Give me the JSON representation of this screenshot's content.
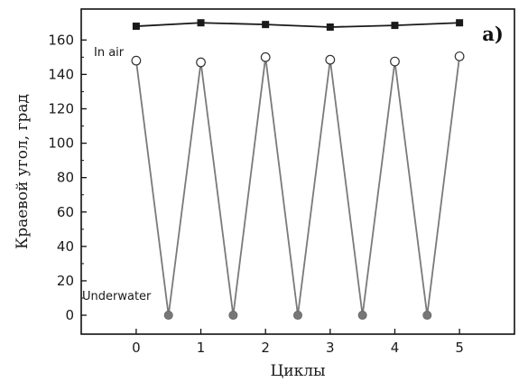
{
  "chart_data": {
    "type": "line",
    "panel_label": "a)",
    "xlabel": "Циклы",
    "ylabel": "Краевой угол, град",
    "xlim": [
      -0.85,
      5.85
    ],
    "ylim": [
      -11,
      178
    ],
    "xticks": [
      0,
      1,
      2,
      3,
      4,
      5
    ],
    "yticks": [
      0,
      20,
      40,
      60,
      80,
      100,
      120,
      140,
      160
    ],
    "grid": false,
    "annotations": [
      {
        "text": "In air",
        "near_series": "in-air"
      },
      {
        "text": "Underwater",
        "near_series": "cycling"
      }
    ],
    "series": [
      {
        "id": "in-air",
        "marker": "filled-square",
        "color": "#1a1a1a",
        "x": [
          0,
          1,
          2,
          3,
          4,
          5
        ],
        "y": [
          168,
          170,
          169,
          167.5,
          168.5,
          170
        ]
      },
      {
        "id": "cycling",
        "marker": "alternating open-circle / filled-circle",
        "color": "#7a7a7a",
        "x": [
          0,
          0.5,
          1,
          1.5,
          2,
          2.5,
          3,
          3.5,
          4,
          4.5,
          5
        ],
        "y": [
          148,
          0,
          147,
          0,
          150,
          0,
          148.5,
          0,
          147.5,
          0,
          150.5
        ],
        "open_marker_x": [
          0,
          1,
          2,
          3,
          4,
          5
        ],
        "filled_marker_x": [
          0.5,
          1.5,
          2.5,
          3.5,
          4.5
        ]
      }
    ]
  }
}
